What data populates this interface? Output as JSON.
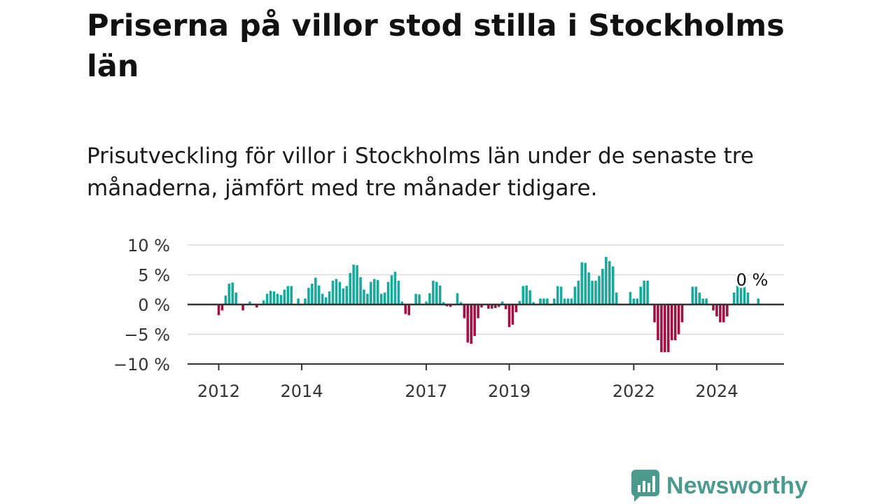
{
  "header": {
    "title": "Priserna på villor stod stilla i Stockholms län",
    "subtitle": "Prisutveckling för villor i Stockholms län under de senaste tre månaderna, jämfört med tre månader tidigare."
  },
  "brand": {
    "name": "Newsworthy",
    "icon": "newsworthy-logo-icon",
    "color": "#4a9a8d"
  },
  "colors": {
    "positive": "#17a99b",
    "negative": "#a3103f",
    "grid": "#d9d9d9",
    "axis": "#333333"
  },
  "chart_data": {
    "type": "bar",
    "title": "Priserna på villor stod stilla i Stockholms län",
    "xlabel": "",
    "ylabel": "",
    "unit": "%",
    "x_start": "2012-01",
    "x_end": "2024-10",
    "ylim": [
      -10,
      10
    ],
    "y_ticks": [
      10,
      5,
      0,
      -5,
      -10
    ],
    "y_tick_labels": [
      "10 %",
      "5 %",
      "0 %",
      "−5 %",
      "−10 %"
    ],
    "x_ticks": [
      "2012",
      "2014",
      "2017",
      "2019",
      "2022",
      "2024"
    ],
    "grid": true,
    "annotation": {
      "x": "2024-10",
      "label": "0 %"
    },
    "series": [
      {
        "values": [
          -1.8,
          -1.0,
          1.5,
          3.5,
          3.7,
          2.0,
          0.0,
          -1.0,
          0.0,
          0.5,
          0.0,
          -0.5,
          0.0,
          0.7,
          1.8,
          2.3,
          2.2,
          1.8,
          1.6,
          2.5,
          3.1,
          3.1,
          0.0,
          1.0,
          0.0,
          1.0,
          2.8,
          3.5,
          4.5,
          3.2,
          1.8,
          1.2,
          2.2,
          4.0,
          4.3,
          3.8,
          2.7,
          3.1,
          5.3,
          6.7,
          6.6,
          4.6,
          2.5,
          1.8,
          3.8,
          4.3,
          4.1,
          1.8,
          2.0,
          3.8,
          4.9,
          5.5,
          4.0,
          0.5,
          -1.6,
          -1.8,
          0.0,
          1.8,
          1.7,
          0.0,
          0.5,
          1.9,
          4.0,
          3.8,
          3.2,
          0.4,
          -0.3,
          -0.4,
          0.0,
          1.9,
          0.4,
          -2.3,
          -6.4,
          -6.6,
          -5.3,
          -2.3,
          -0.5,
          0.0,
          -0.7,
          -0.7,
          -0.6,
          -0.4,
          0.5,
          -0.8,
          -3.8,
          -3.4,
          -1.3,
          0.6,
          3.1,
          3.2,
          2.4,
          0.4,
          0.0,
          1.0,
          1.0,
          1.0,
          0.0,
          1.0,
          3.1,
          3.0,
          1.0,
          1.0,
          1.0,
          3.0,
          4.0,
          7.1,
          7.0,
          5.4,
          4.0,
          4.0,
          4.8,
          6.0,
          8.0,
          7.3,
          6.4,
          2.0,
          0.0,
          0.0,
          0.0,
          2.1,
          1.0,
          1.0,
          3.0,
          4.0,
          4.0,
          0.0,
          -3.0,
          -6.0,
          -8.0,
          -8.0,
          -8.0,
          -6.0,
          -6.0,
          -5.0,
          -3.0,
          0.0,
          0.0,
          3.0,
          3.0,
          2.0,
          1.0,
          1.0,
          0.0,
          -1.0,
          -2.0,
          -3.0,
          -3.0,
          -2.0,
          0.0,
          2.0,
          4.0,
          3.0,
          3.0,
          2.0,
          0.0,
          0.0,
          1.0,
          0.0
        ]
      }
    ]
  }
}
